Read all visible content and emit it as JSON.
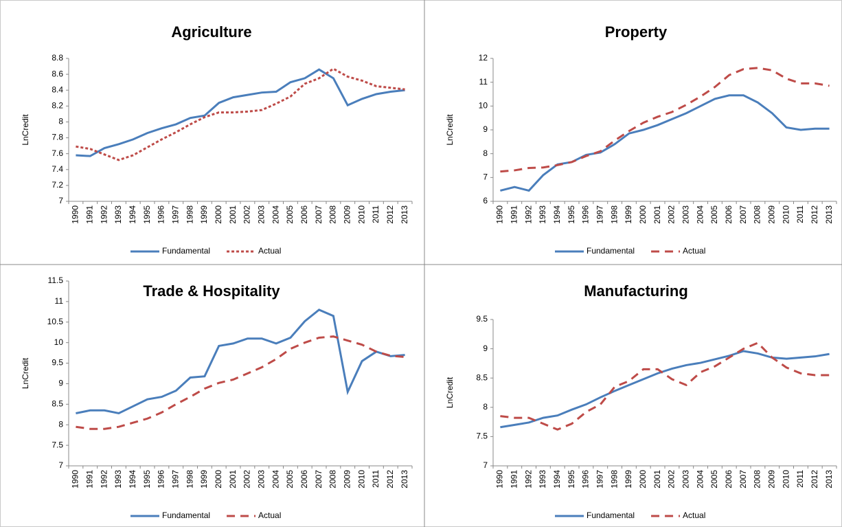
{
  "chart_data": [
    {
      "type": "line",
      "title": "Agriculture",
      "y_label": "LnCredit",
      "categories": [
        "1990",
        "1991",
        "1992",
        "1993",
        "1994",
        "1995",
        "1996",
        "1997",
        "1998",
        "1999",
        "2000",
        "2001",
        "2002",
        "2003",
        "2004",
        "2005",
        "2006",
        "2007",
        "2008",
        "2009",
        "2010",
        "2011",
        "2012",
        "2013"
      ],
      "ylim": [
        7,
        8.8
      ],
      "yticks": [
        7,
        7.2,
        7.4,
        7.6,
        7.8,
        8,
        8.2,
        8.4,
        8.6,
        8.8
      ],
      "legend": "bottom",
      "series": [
        {
          "name": "Fundamental",
          "color": "#4a7ebb",
          "dash": "solid",
          "values": [
            7.58,
            7.57,
            7.67,
            7.72,
            7.78,
            7.86,
            7.92,
            7.97,
            8.05,
            8.08,
            8.24,
            8.31,
            8.34,
            8.37,
            8.38,
            8.5,
            8.55,
            8.66,
            8.55,
            8.21,
            8.29,
            8.35,
            8.38,
            8.4
          ]
        },
        {
          "name": "Actual",
          "color": "#be4b48",
          "dash": "short",
          "values": [
            7.69,
            7.66,
            7.59,
            7.52,
            7.58,
            7.68,
            7.78,
            7.87,
            7.97,
            8.06,
            8.12,
            8.12,
            8.13,
            8.15,
            8.23,
            8.32,
            8.48,
            8.55,
            8.67,
            8.57,
            8.52,
            8.45,
            8.43,
            8.41
          ]
        }
      ]
    },
    {
      "type": "line",
      "title": "Property",
      "y_label": "LnCredit",
      "categories": [
        "1990",
        "1991",
        "1992",
        "1993",
        "1994",
        "1995",
        "1996",
        "1997",
        "1998",
        "1999",
        "2000",
        "2001",
        "2002",
        "2003",
        "2004",
        "2005",
        "2006",
        "2007",
        "2008",
        "2009",
        "2010",
        "2011",
        "2012",
        "2013"
      ],
      "ylim": [
        6,
        12
      ],
      "yticks": [
        6,
        7,
        8,
        9,
        10,
        11,
        12
      ],
      "legend": "bottom",
      "series": [
        {
          "name": "Fundamental",
          "color": "#4a7ebb",
          "dash": "solid",
          "values": [
            6.45,
            6.6,
            6.45,
            7.1,
            7.55,
            7.65,
            7.95,
            8.05,
            8.4,
            8.85,
            9.0,
            9.2,
            9.45,
            9.7,
            10.0,
            10.3,
            10.45,
            10.45,
            10.15,
            9.7,
            9.1,
            9.0,
            9.05,
            9.05
          ]
        },
        {
          "name": "Actual",
          "color": "#be4b48",
          "dash": "long",
          "values": [
            7.25,
            7.3,
            7.4,
            7.42,
            7.52,
            7.65,
            7.9,
            8.1,
            8.55,
            8.95,
            9.3,
            9.55,
            9.75,
            10.05,
            10.4,
            10.8,
            11.3,
            11.55,
            11.6,
            11.5,
            11.15,
            10.95,
            10.95,
            10.85
          ]
        }
      ]
    },
    {
      "type": "line",
      "title": "Trade & Hospitality",
      "y_label": "LnCredit",
      "categories": [
        "1990",
        "1991",
        "1992",
        "1993",
        "1994",
        "1995",
        "1996",
        "1997",
        "1998",
        "1999",
        "2000",
        "2001",
        "2002",
        "2003",
        "2004",
        "2005",
        "2006",
        "2007",
        "2008",
        "2009",
        "2010",
        "2011",
        "2012",
        "2013"
      ],
      "ylim": [
        7,
        11.5
      ],
      "yticks": [
        7,
        7.5,
        8,
        8.5,
        9,
        9.5,
        10,
        10.5,
        11,
        11.5
      ],
      "legend": "bottom",
      "series": [
        {
          "name": "Fundamental",
          "color": "#4a7ebb",
          "dash": "solid",
          "values": [
            8.28,
            8.35,
            8.35,
            8.28,
            8.45,
            8.62,
            8.68,
            8.83,
            9.15,
            9.18,
            9.92,
            9.98,
            10.1,
            10.1,
            9.98,
            10.12,
            10.52,
            10.8,
            10.65,
            8.8,
            9.55,
            9.78,
            9.67,
            9.7
          ]
        },
        {
          "name": "Actual",
          "color": "#be4b48",
          "dash": "long",
          "values": [
            7.95,
            7.9,
            7.9,
            7.95,
            8.05,
            8.15,
            8.3,
            8.5,
            8.68,
            8.88,
            9.02,
            9.1,
            9.25,
            9.4,
            9.6,
            9.85,
            10.0,
            10.12,
            10.15,
            10.05,
            9.95,
            9.78,
            9.68,
            9.65
          ]
        }
      ]
    },
    {
      "type": "line",
      "title": "Manufacturing",
      "y_label": "LnCredit",
      "categories": [
        "1990",
        "1991",
        "1992",
        "1993",
        "1994",
        "1995",
        "1996",
        "1997",
        "1998",
        "1999",
        "2000",
        "2001",
        "2002",
        "2003",
        "2004",
        "2005",
        "2006",
        "2007",
        "2008",
        "2009",
        "2010",
        "2011",
        "2012",
        "2013"
      ],
      "ylim": [
        7,
        9.5
      ],
      "yticks": [
        7,
        7.5,
        8,
        8.5,
        9,
        9.5
      ],
      "legend": "bottom",
      "series": [
        {
          "name": "Fundamental",
          "color": "#4a7ebb",
          "dash": "solid",
          "values": [
            7.66,
            7.7,
            7.74,
            7.82,
            7.86,
            7.96,
            8.05,
            8.17,
            8.28,
            8.38,
            8.48,
            8.58,
            8.66,
            8.72,
            8.76,
            8.82,
            8.88,
            8.96,
            8.92,
            8.85,
            8.83,
            8.85,
            8.87,
            8.91
          ]
        },
        {
          "name": "Actual",
          "color": "#be4b48",
          "dash": "long",
          "values": [
            7.85,
            7.82,
            7.82,
            7.72,
            7.62,
            7.72,
            7.92,
            8.05,
            8.35,
            8.45,
            8.65,
            8.65,
            8.48,
            8.38,
            8.6,
            8.7,
            8.85,
            9.0,
            9.1,
            8.85,
            8.68,
            8.58,
            8.55,
            8.55
          ]
        }
      ]
    }
  ]
}
